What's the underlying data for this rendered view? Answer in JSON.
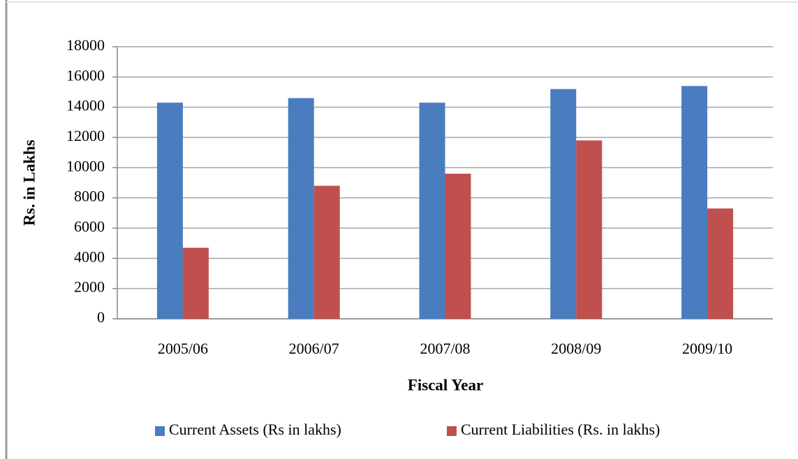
{
  "chart_data": {
    "type": "bar",
    "x_label": "Fiscal Year",
    "y_label": "Rs. in Lakhs",
    "categories": [
      "2005/06",
      "2006/07",
      "2007/08",
      "2008/09",
      "2009/10"
    ],
    "series": [
      {
        "name": "Current Assets (Rs in lakhs)",
        "color": "#4a7dc0",
        "values": [
          14300,
          14600,
          14300,
          15200,
          15400
        ]
      },
      {
        "name": "Current Liabilities (Rs. in lakhs)",
        "color": "#c0504d",
        "values": [
          4700,
          8800,
          9600,
          11800,
          7300
        ]
      }
    ],
    "ylim": [
      0,
      18000
    ],
    "yticks": [
      0,
      2000,
      4000,
      6000,
      8000,
      10000,
      12000,
      14000,
      16000,
      18000
    ],
    "grid": true,
    "legend": "bottom"
  }
}
